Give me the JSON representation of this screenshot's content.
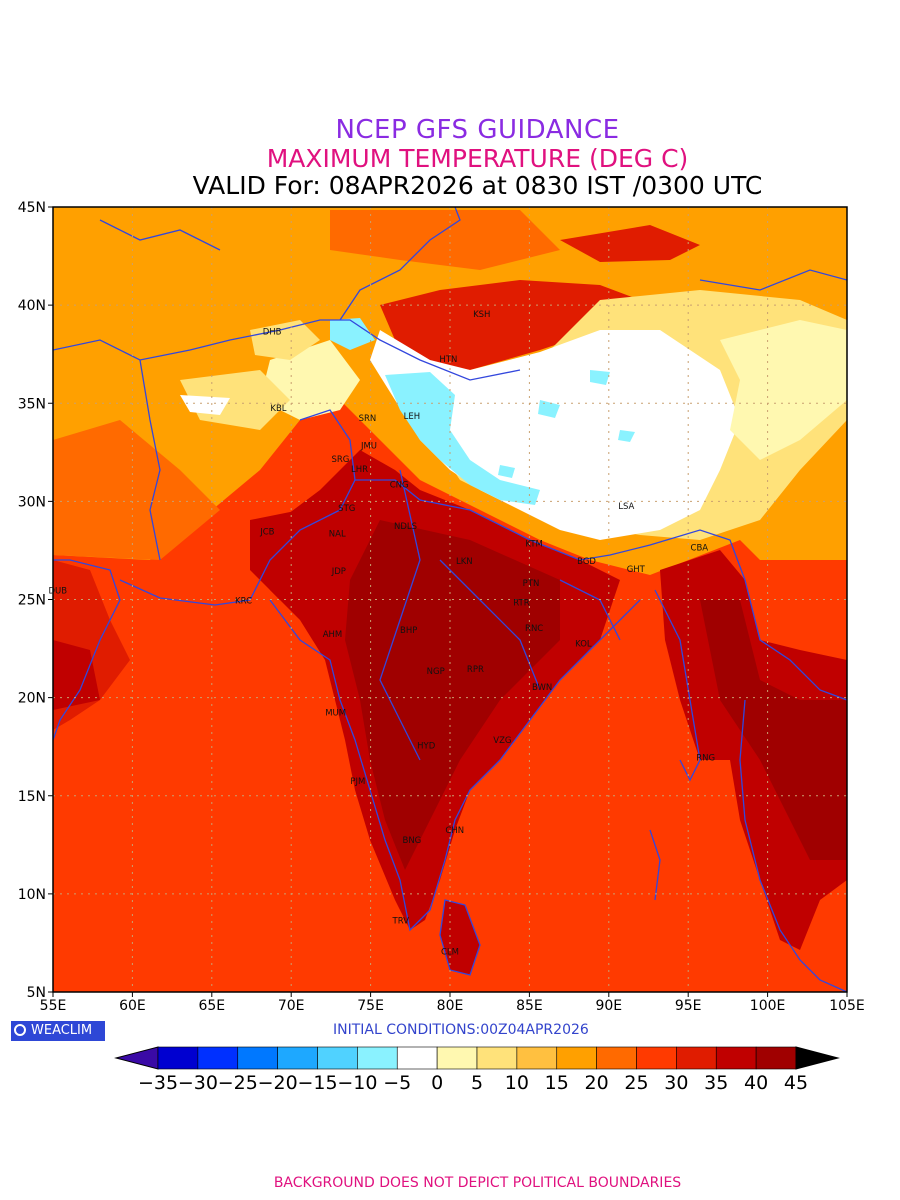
{
  "title": {
    "line1": "NCEP GFS GUIDANCE",
    "line2": "MAXIMUM TEMPERATURE (DEG C)",
    "line3": "VALID For: 08APR2026 at 0830 IST /0300 UTC"
  },
  "axes": {
    "x_ticks": [
      "55E",
      "60E",
      "65E",
      "70E",
      "75E",
      "80E",
      "85E",
      "90E",
      "95E",
      "100E",
      "105E"
    ],
    "y_ticks": [
      "45N",
      "40N",
      "35N",
      "30N",
      "25N",
      "20N",
      "15N",
      "10N",
      "5N"
    ],
    "lon_range": [
      55,
      105
    ],
    "lat_range": [
      5,
      45
    ],
    "grid": true
  },
  "logo": {
    "text": "WEACLIM"
  },
  "initial_conditions": "INITIAL CONDITIONS:00Z04APR2026",
  "colorbar": {
    "labels": [
      "−35",
      "−30",
      "−25",
      "−20",
      "−15",
      "−10",
      "−5",
      "0",
      "5",
      "10",
      "15",
      "20",
      "25",
      "30",
      "35",
      "40",
      "45"
    ],
    "colors": [
      "#3a0aa6",
      "#0000d0",
      "#0030ff",
      "#0078ff",
      "#1ea8ff",
      "#50d2ff",
      "#8af2ff",
      "#ffffff",
      "#fff8b0",
      "#ffe27a",
      "#ffc040",
      "#ffa000",
      "#ff6a00",
      "#ff3a00",
      "#e01c00",
      "#c00000",
      "#a00000",
      "#000000"
    ]
  },
  "footer": "BACKGROUND DOES NOT DEPICT POLITICAL BOUNDARIES",
  "cities": [
    {
      "name": "KSH",
      "lon": 82.0,
      "lat": 39.4
    },
    {
      "name": "DHB",
      "lon": 68.8,
      "lat": 38.5
    },
    {
      "name": "HTN",
      "lon": 79.9,
      "lat": 37.1
    },
    {
      "name": "KBL",
      "lon": 69.2,
      "lat": 34.6
    },
    {
      "name": "SRN",
      "lon": 74.8,
      "lat": 34.1
    },
    {
      "name": "LEH",
      "lon": 77.6,
      "lat": 34.2
    },
    {
      "name": "JMU",
      "lon": 74.9,
      "lat": 32.7
    },
    {
      "name": "SRG",
      "lon": 73.1,
      "lat": 32.0
    },
    {
      "name": "LHR",
      "lon": 74.3,
      "lat": 31.5
    },
    {
      "name": "CNG",
      "lon": 76.8,
      "lat": 30.7
    },
    {
      "name": "STG",
      "lon": 73.5,
      "lat": 29.5
    },
    {
      "name": "LSA",
      "lon": 91.1,
      "lat": 29.6
    },
    {
      "name": "JCB",
      "lon": 68.5,
      "lat": 28.3
    },
    {
      "name": "NAL",
      "lon": 72.9,
      "lat": 28.2
    },
    {
      "name": "NDLS",
      "lon": 77.2,
      "lat": 28.6
    },
    {
      "name": "KTM",
      "lon": 85.3,
      "lat": 27.7
    },
    {
      "name": "CBA",
      "lon": 95.7,
      "lat": 27.5
    },
    {
      "name": "BGD",
      "lon": 88.6,
      "lat": 26.8
    },
    {
      "name": "GHT",
      "lon": 91.7,
      "lat": 26.4
    },
    {
      "name": "JDP",
      "lon": 73.0,
      "lat": 26.3
    },
    {
      "name": "LKN",
      "lon": 80.9,
      "lat": 26.8
    },
    {
      "name": "PTN",
      "lon": 85.1,
      "lat": 25.7
    },
    {
      "name": "DUB",
      "lon": 55.3,
      "lat": 25.3
    },
    {
      "name": "KRC",
      "lon": 67.0,
      "lat": 24.8
    },
    {
      "name": "RTR",
      "lon": 84.5,
      "lat": 24.7
    },
    {
      "name": "AHM",
      "lon": 72.6,
      "lat": 23.1
    },
    {
      "name": "BHP",
      "lon": 77.4,
      "lat": 23.3
    },
    {
      "name": "RNC",
      "lon": 85.3,
      "lat": 23.4
    },
    {
      "name": "KOL",
      "lon": 88.4,
      "lat": 22.6
    },
    {
      "name": "NGP",
      "lon": 79.1,
      "lat": 21.2
    },
    {
      "name": "RPR",
      "lon": 81.6,
      "lat": 21.3
    },
    {
      "name": "BWN",
      "lon": 85.8,
      "lat": 20.4
    },
    {
      "name": "MUM",
      "lon": 72.8,
      "lat": 19.1
    },
    {
      "name": "HYD",
      "lon": 78.5,
      "lat": 17.4
    },
    {
      "name": "VZG",
      "lon": 83.3,
      "lat": 17.7
    },
    {
      "name": "RNG",
      "lon": 96.1,
      "lat": 16.8
    },
    {
      "name": "PJM",
      "lon": 74.2,
      "lat": 15.6
    },
    {
      "name": "CHN",
      "lon": 80.3,
      "lat": 13.1
    },
    {
      "name": "BNG",
      "lon": 77.6,
      "lat": 12.6
    },
    {
      "name": "TRV",
      "lon": 76.9,
      "lat": 8.5
    },
    {
      "name": "CLM",
      "lon": 80.0,
      "lat": 6.9
    }
  ]
}
